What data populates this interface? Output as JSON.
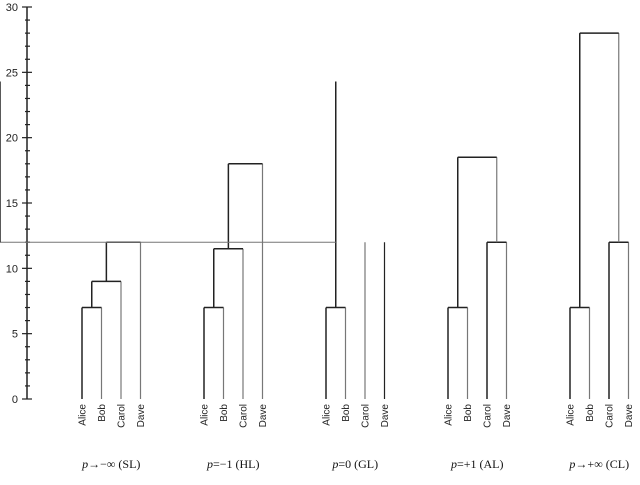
{
  "chart_data": {
    "type": "dendrogram",
    "title": "",
    "ylabel": "",
    "ylim": [
      0,
      30
    ],
    "yticks_major": [
      0,
      5,
      10,
      15,
      20,
      25,
      30
    ],
    "yticks_minor_step": 1,
    "leaves": [
      "Alice",
      "Bob",
      "Carol",
      "Dave"
    ],
    "panels": [
      {
        "caption_p": "p",
        "caption_rest": "→−∞ (SL)",
        "method": "single linkage",
        "merges": [
          {
            "left": [
              "Alice"
            ],
            "right": [
              "Bob"
            ],
            "height": 7
          },
          {
            "left": [
              "Alice",
              "Bob"
            ],
            "right": [
              "Carol"
            ],
            "height": 9
          },
          {
            "left": [
              "Alice",
              "Bob",
              "Carol"
            ],
            "right": [
              "Dave"
            ],
            "height": 12
          }
        ]
      },
      {
        "caption_p": "p",
        "caption_rest": "=−1 (HL)",
        "method": "harmonic linkage",
        "merges": [
          {
            "left": [
              "Alice"
            ],
            "right": [
              "Bob"
            ],
            "height": 7
          },
          {
            "left": [
              "Alice",
              "Bob"
            ],
            "right": [
              "Carol"
            ],
            "height": 11.5
          },
          {
            "left": [
              "Alice",
              "Bob",
              "Carol"
            ],
            "right": [
              "Dave"
            ],
            "height": 18
          }
        ]
      },
      {
        "caption_p": "p",
        "caption_rest": "=0 (GL)",
        "method": "geometric linkage",
        "merges": [
          {
            "left": [
              "Alice"
            ],
            "right": [
              "Bob"
            ],
            "height": 7
          },
          {
            "left": [
              "Alice",
              "Bob"
            ],
            "right": [
              "Carol",
              "Dave"
            ],
            "height": 12,
            "upper": 24.3,
            "shaded": true
          }
        ]
      },
      {
        "caption_p": "p",
        "caption_rest": "=+1 (AL)",
        "method": "average linkage",
        "merges": [
          {
            "left": [
              "Alice"
            ],
            "right": [
              "Bob"
            ],
            "height": 7
          },
          {
            "left": [
              "Carol"
            ],
            "right": [
              "Dave"
            ],
            "height": 12
          },
          {
            "left": [
              "Alice",
              "Bob"
            ],
            "right": [
              "Carol",
              "Dave"
            ],
            "height": 18.5
          }
        ]
      },
      {
        "caption_p": "p",
        "caption_rest": "→+∞ (CL)",
        "method": "complete linkage",
        "merges": [
          {
            "left": [
              "Alice"
            ],
            "right": [
              "Bob"
            ],
            "height": 7
          },
          {
            "left": [
              "Carol"
            ],
            "right": [
              "Dave"
            ],
            "height": 12
          },
          {
            "left": [
              "Alice",
              "Bob"
            ],
            "right": [
              "Carol",
              "Dave"
            ],
            "height": 28
          }
        ]
      }
    ],
    "colors": {
      "line": "#222222",
      "line_light": "#777777",
      "shade": "#e0e0e0"
    }
  }
}
